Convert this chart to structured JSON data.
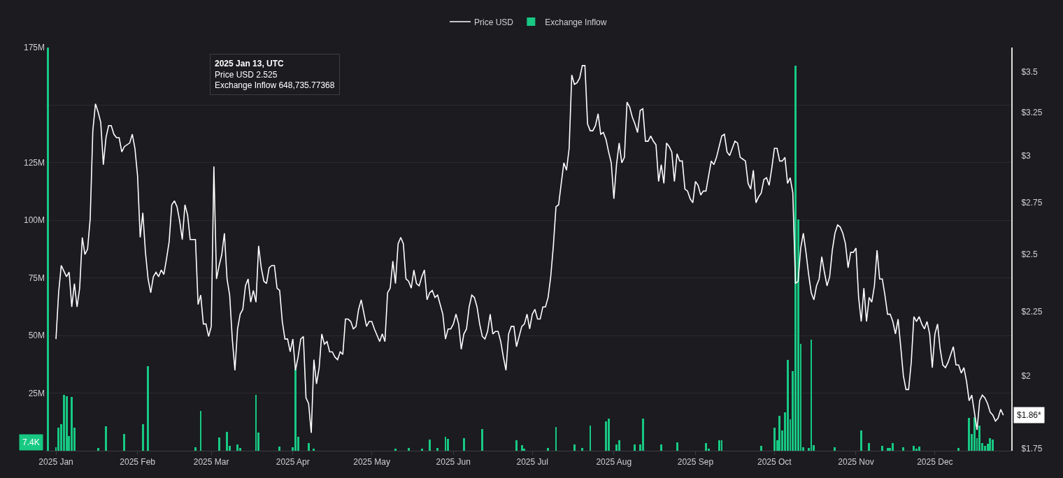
{
  "chart_data": {
    "type": "line",
    "series": [
      {
        "name": "Price USD",
        "color": "#ffffff",
        "axis": "y2",
        "x": [
          "2025-01-01",
          "2025-01-02",
          "2025-01-03",
          "2025-01-05",
          "2025-01-06",
          "2025-01-07",
          "2025-01-08",
          "2025-01-09",
          "2025-01-10",
          "2025-01-11",
          "2025-01-12",
          "2025-01-13",
          "2025-01-14",
          "2025-01-15",
          "2025-01-16",
          "2025-01-17",
          "2025-01-18",
          "2025-01-19",
          "2025-01-20",
          "2025-01-21",
          "2025-01-22",
          "2025-01-23",
          "2025-01-24",
          "2025-01-25",
          "2025-01-26",
          "2025-01-27",
          "2025-01-29",
          "2025-01-30",
          "2025-01-31",
          "2025-02-01",
          "2025-02-02",
          "2025-02-03",
          "2025-02-04",
          "2025-02-05",
          "2025-02-06",
          "2025-02-07",
          "2025-02-08",
          "2025-02-09",
          "2025-02-10",
          "2025-02-11",
          "2025-02-12",
          "2025-02-13",
          "2025-02-14",
          "2025-02-15",
          "2025-02-16",
          "2025-02-17",
          "2025-02-18",
          "2025-02-19",
          "2025-02-20",
          "2025-02-21",
          "2025-02-23",
          "2025-02-24",
          "2025-02-25",
          "2025-02-26",
          "2025-02-27",
          "2025-02-28",
          "2025-03-01",
          "2025-03-02",
          "2025-03-03",
          "2025-03-04",
          "2025-03-05",
          "2025-03-06",
          "2025-03-07",
          "2025-03-08",
          "2025-03-09",
          "2025-03-10",
          "2025-03-11",
          "2025-03-12",
          "2025-03-13",
          "2025-03-14",
          "2025-03-15",
          "2025-03-16",
          "2025-03-17",
          "2025-03-18",
          "2025-03-19",
          "2025-03-20",
          "2025-03-21",
          "2025-03-22",
          "2025-03-23",
          "2025-03-24",
          "2025-03-25",
          "2025-03-26",
          "2025-03-27",
          "2025-03-28",
          "2025-03-29",
          "2025-03-30",
          "2025-03-31",
          "2025-04-01",
          "2025-04-02",
          "2025-04-03",
          "2025-04-04",
          "2025-04-05",
          "2025-04-06",
          "2025-04-07",
          "2025-04-08",
          "2025-04-09",
          "2025-04-10",
          "2025-04-11",
          "2025-04-12",
          "2025-04-13",
          "2025-04-14",
          "2025-04-15",
          "2025-04-16",
          "2025-04-17",
          "2025-04-18",
          "2025-04-19",
          "2025-04-20",
          "2025-04-21",
          "2025-04-22",
          "2025-04-23",
          "2025-04-24",
          "2025-04-25",
          "2025-04-26",
          "2025-04-27",
          "2025-04-29",
          "2025-04-30",
          "2025-05-01",
          "2025-05-02",
          "2025-05-04",
          "2025-05-05",
          "2025-05-06",
          "2025-05-07",
          "2025-05-08",
          "2025-05-09",
          "2025-05-10",
          "2025-05-11",
          "2025-05-12",
          "2025-05-13",
          "2025-05-14",
          "2025-05-15",
          "2025-05-16",
          "2025-05-17",
          "2025-05-18",
          "2025-05-19",
          "2025-05-20",
          "2025-05-21",
          "2025-05-22",
          "2025-05-23",
          "2025-05-24",
          "2025-05-25",
          "2025-05-26",
          "2025-05-27",
          "2025-05-28",
          "2025-05-29",
          "2025-05-30",
          "2025-05-31",
          "2025-06-01",
          "2025-06-02",
          "2025-06-03",
          "2025-06-04",
          "2025-06-05",
          "2025-06-06",
          "2025-06-07",
          "2025-06-08",
          "2025-06-09",
          "2025-06-10",
          "2025-06-11",
          "2025-06-12",
          "2025-06-13",
          "2025-06-14",
          "2025-06-15",
          "2025-06-16",
          "2025-06-17",
          "2025-06-18",
          "2025-06-19",
          "2025-06-20",
          "2025-06-21",
          "2025-06-22",
          "2025-06-23",
          "2025-06-24",
          "2025-06-25",
          "2025-06-26",
          "2025-06-27",
          "2025-06-28",
          "2025-06-29",
          "2025-06-30",
          "2025-07-01",
          "2025-07-02",
          "2025-07-03",
          "2025-07-04",
          "2025-07-05",
          "2025-07-06",
          "2025-07-07",
          "2025-07-08",
          "2025-07-09",
          "2025-07-10",
          "2025-07-11",
          "2025-07-12",
          "2025-07-13",
          "2025-07-14",
          "2025-07-15",
          "2025-07-16",
          "2025-07-17",
          "2025-07-18",
          "2025-07-19",
          "2025-07-20",
          "2025-07-21",
          "2025-07-22",
          "2025-07-23",
          "2025-07-24",
          "2025-07-25",
          "2025-07-26",
          "2025-07-27",
          "2025-07-28",
          "2025-07-29",
          "2025-07-30",
          "2025-07-31",
          "2025-08-01",
          "2025-08-02",
          "2025-08-03",
          "2025-08-04",
          "2025-08-05",
          "2025-08-06",
          "2025-08-07",
          "2025-08-08",
          "2025-08-09",
          "2025-08-10",
          "2025-08-11",
          "2025-08-12",
          "2025-08-13",
          "2025-08-14",
          "2025-08-15",
          "2025-08-16",
          "2025-08-17",
          "2025-08-18",
          "2025-08-19",
          "2025-08-20",
          "2025-08-21",
          "2025-08-22",
          "2025-08-23",
          "2025-08-24",
          "2025-08-25",
          "2025-08-26",
          "2025-08-27",
          "2025-08-28",
          "2025-08-29",
          "2025-08-30",
          "2025-08-31",
          "2025-09-01",
          "2025-09-02",
          "2025-09-03",
          "2025-09-04",
          "2025-09-05",
          "2025-09-06",
          "2025-09-07",
          "2025-09-08",
          "2025-09-09",
          "2025-09-10",
          "2025-09-11",
          "2025-09-12",
          "2025-09-13",
          "2025-09-14",
          "2025-09-15",
          "2025-09-16",
          "2025-09-17",
          "2025-09-18",
          "2025-09-19",
          "2025-09-20",
          "2025-09-21",
          "2025-09-22",
          "2025-09-23",
          "2025-09-24",
          "2025-09-25",
          "2025-09-26",
          "2025-09-27",
          "2025-09-28",
          "2025-09-29",
          "2025-09-30",
          "2025-10-01",
          "2025-10-02",
          "2025-10-03",
          "2025-10-04",
          "2025-10-05",
          "2025-10-06",
          "2025-10-07",
          "2025-10-08",
          "2025-10-09",
          "2025-10-10",
          "2025-10-11",
          "2025-10-12",
          "2025-10-13",
          "2025-10-14",
          "2025-10-15",
          "2025-10-16",
          "2025-10-17",
          "2025-10-18",
          "2025-10-19",
          "2025-10-20",
          "2025-10-21",
          "2025-10-22",
          "2025-10-23",
          "2025-10-24",
          "2025-10-25",
          "2025-10-26",
          "2025-10-27",
          "2025-10-28",
          "2025-10-29",
          "2025-10-30",
          "2025-10-31",
          "2025-11-01",
          "2025-11-02",
          "2025-11-03",
          "2025-11-04",
          "2025-11-05",
          "2025-11-06",
          "2025-11-07",
          "2025-11-08",
          "2025-11-09",
          "2025-11-10",
          "2025-11-11",
          "2025-11-12",
          "2025-11-13",
          "2025-11-14",
          "2025-11-15",
          "2025-11-16",
          "2025-11-17",
          "2025-11-18",
          "2025-11-19",
          "2025-11-20",
          "2025-11-21",
          "2025-11-22",
          "2025-11-23",
          "2025-11-24",
          "2025-11-25",
          "2025-11-26",
          "2025-11-27",
          "2025-11-28",
          "2025-11-29",
          "2025-11-30",
          "2025-12-01",
          "2025-12-02",
          "2025-12-03",
          "2025-12-04",
          "2025-12-05",
          "2025-12-06",
          "2025-12-07",
          "2025-12-08",
          "2025-12-09",
          "2025-12-10",
          "2025-12-11",
          "2025-12-12",
          "2025-12-13",
          "2025-12-14",
          "2025-12-15",
          "2025-12-16",
          "2025-12-17",
          "2025-12-18",
          "2025-12-19",
          "2025-12-20",
          "2025-12-21",
          "2025-12-22",
          "2025-12-23",
          "2025-12-24",
          "2025-12-25",
          "2025-12-26",
          "2025-12-27"
        ],
        "values": [
          2.14,
          2.33,
          2.45,
          2.4,
          2.42,
          2.27,
          2.37,
          2.27,
          2.35,
          2.58,
          2.5,
          2.525,
          2.67,
          3.14,
          3.3,
          3.25,
          3.19,
          2.95,
          3.1,
          3.17,
          3.17,
          3.12,
          3.1,
          3.1,
          3.02,
          3.05,
          3.07,
          3.12,
          3.04,
          2.89,
          2.58,
          2.7,
          2.51,
          2.39,
          2.33,
          2.4,
          2.42,
          2.4,
          2.43,
          2.41,
          2.48,
          2.56,
          2.74,
          2.76,
          2.73,
          2.66,
          2.57,
          2.74,
          2.69,
          2.57,
          2.57,
          2.28,
          2.32,
          2.2,
          2.2,
          2.15,
          2.19,
          2.94,
          2.39,
          2.45,
          2.5,
          2.6,
          2.39,
          2.32,
          2.14,
          2.02,
          2.18,
          2.24,
          2.26,
          2.36,
          2.39,
          2.29,
          2.34,
          2.29,
          2.54,
          2.44,
          2.38,
          2.37,
          2.44,
          2.45,
          2.45,
          2.35,
          2.34,
          2.21,
          2.14,
          2.14,
          2.09,
          2.14,
          2.02,
          2.07,
          2.14,
          2.15,
          1.92,
          1.9,
          1.8,
          2.06,
          1.97,
          2.03,
          2.16,
          2.12,
          2.13,
          2.09,
          2.09,
          2.07,
          2.06,
          2.09,
          2.08,
          2.22,
          2.22,
          2.21,
          2.18,
          2.19,
          2.26,
          2.3,
          2.19,
          2.21,
          2.21,
          2.18,
          2.13,
          2.16,
          2.13,
          2.33,
          2.35,
          2.47,
          2.37,
          2.55,
          2.58,
          2.55,
          2.39,
          2.38,
          2.35,
          2.43,
          2.37,
          2.36,
          2.4,
          2.43,
          2.3,
          2.33,
          2.34,
          2.31,
          2.32,
          2.28,
          2.24,
          2.14,
          2.18,
          2.18,
          2.2,
          2.24,
          2.2,
          2.1,
          2.16,
          2.18,
          2.27,
          2.32,
          2.31,
          2.27,
          2.2,
          2.15,
          2.14,
          2.17,
          2.24,
          2.16,
          2.17,
          2.17,
          2.13,
          2.07,
          2.02,
          2.16,
          2.19,
          2.19,
          2.11,
          2.15,
          2.19,
          2.2,
          2.24,
          2.18,
          2.24,
          2.26,
          2.22,
          2.22,
          2.27,
          2.27,
          2.31,
          2.4,
          2.54,
          2.73,
          2.74,
          2.85,
          2.96,
          2.92,
          3.04,
          3.48,
          3.42,
          3.43,
          3.46,
          3.54,
          3.54,
          3.18,
          3.14,
          3.14,
          3.17,
          3.24,
          3.12,
          3.13,
          3.09,
          3.02,
          2.96,
          2.77,
          2.95,
          3.07,
          2.96,
          2.99,
          3.31,
          3.28,
          3.22,
          3.18,
          3.13,
          3.26,
          3.27,
          3.08,
          3.08,
          3.11,
          3.08,
          3.06,
          2.86,
          2.95,
          2.85,
          3.07,
          3.05,
          3.02,
          2.86,
          3.01,
          2.97,
          2.97,
          2.82,
          2.81,
          2.77,
          2.75,
          2.86,
          2.84,
          2.79,
          2.81,
          2.81,
          2.89,
          2.97,
          2.95,
          2.99,
          3.05,
          3.11,
          3.12,
          3.02,
          3.0,
          3.04,
          3.08,
          3.07,
          2.99,
          2.98,
          2.97,
          2.85,
          2.82,
          2.92,
          2.75,
          2.78,
          2.8,
          2.87,
          2.88,
          2.84,
          2.93,
          3.04,
          3.04,
          2.97,
          2.97,
          2.99,
          2.85,
          2.88,
          2.8,
          2.37,
          2.38,
          2.53,
          2.6,
          2.51,
          2.41,
          2.33,
          2.3,
          2.36,
          2.39,
          2.49,
          2.42,
          2.36,
          2.4,
          2.52,
          2.6,
          2.64,
          2.63,
          2.6,
          2.55,
          2.44,
          2.51,
          2.51,
          2.53,
          2.31,
          2.21,
          2.35,
          2.21,
          2.31,
          2.29,
          2.36,
          2.52,
          2.39,
          2.39,
          2.32,
          2.24,
          2.24,
          2.21,
          2.16,
          2.22,
          2.11,
          2.0,
          1.95,
          1.95,
          2.05,
          2.23,
          2.21,
          2.23,
          2.2,
          2.18,
          2.21,
          2.16,
          2.03,
          2.16,
          2.2,
          2.1,
          2.04,
          2.03,
          2.05,
          2.08,
          2.11,
          2.04,
          2.04,
          2.01,
          2.03,
          1.98,
          1.91,
          1.93,
          1.87,
          1.81,
          1.91,
          1.93,
          1.92,
          1.9,
          1.87,
          1.86,
          1.84,
          1.85,
          1.88,
          1.86
        ]
      },
      {
        "name": "Exchange Inflow",
        "type": "bar",
        "color": "#17c983",
        "x": [
          "2024-12-29",
          "2025-01-01",
          "2025-01-02",
          "2025-01-03",
          "2025-01-04",
          "2025-01-05",
          "2025-01-06",
          "2025-01-07",
          "2025-01-08",
          "2025-01-17",
          "2025-01-20",
          "2025-01-27",
          "2025-02-03",
          "2025-02-05",
          "2025-02-23",
          "2025-02-25",
          "2025-03-04",
          "2025-03-07",
          "2025-03-08",
          "2025-03-11",
          "2025-03-12",
          "2025-03-18",
          "2025-03-19",
          "2025-03-27",
          "2025-04-01",
          "2025-04-02",
          "2025-04-03",
          "2025-04-07",
          "2025-04-09",
          "2025-05-10",
          "2025-05-15",
          "2025-05-20",
          "2025-05-23",
          "2025-05-26",
          "2025-05-29",
          "2025-05-30",
          "2025-06-05",
          "2025-06-12",
          "2025-06-25",
          "2025-06-27",
          "2025-06-28",
          "2025-07-07",
          "2025-07-10",
          "2025-07-17",
          "2025-07-20",
          "2025-07-23",
          "2025-07-29",
          "2025-07-30",
          "2025-08-02",
          "2025-08-03",
          "2025-08-09",
          "2025-08-11",
          "2025-08-12",
          "2025-08-19",
          "2025-08-25",
          "2025-09-05",
          "2025-09-06",
          "2025-09-10",
          "2025-09-11",
          "2025-09-26",
          "2025-10-01",
          "2025-10-02",
          "2025-10-03",
          "2025-10-04",
          "2025-10-05",
          "2025-10-06",
          "2025-10-07",
          "2025-10-08",
          "2025-10-09",
          "2025-10-10",
          "2025-10-11",
          "2025-10-12",
          "2025-10-14",
          "2025-10-15",
          "2025-10-16",
          "2025-10-24",
          "2025-11-03",
          "2025-11-06",
          "2025-11-11",
          "2025-11-13",
          "2025-11-14",
          "2025-11-15",
          "2025-11-19",
          "2025-11-23",
          "2025-11-24",
          "2025-11-25",
          "2025-12-10",
          "2025-12-14",
          "2025-12-15",
          "2025-12-16",
          "2025-12-17",
          "2025-12-18",
          "2025-12-19",
          "2025-12-20",
          "2025-12-21",
          "2025-12-22",
          "2025-12-23"
        ],
        "values": [
          175000000,
          1400000,
          9900000,
          11600000,
          24400000,
          23800000,
          6400000,
          23500000,
          9900000,
          1200000,
          10700000,
          7200000,
          11400000,
          36800000,
          1400000,
          17400000,
          5800000,
          8100000,
          2100000,
          2600000,
          1200000,
          24400000,
          7900000,
          1700000,
          1400000,
          35400000,
          6000000,
          3300000,
          900000,
          900000,
          1200000,
          900000,
          5000000,
          1200000,
          6200000,
          5200000,
          5500000,
          9500000,
          4400000,
          2300000,
          900000,
          1200000,
          10400000,
          2600000,
          1200000,
          11000000,
          12800000,
          13900000,
          2600000,
          4400000,
          2600000,
          2600000,
          13900000,
          2800000,
          3500000,
          3300000,
          900000,
          4400000,
          4400000,
          2100000,
          9900000,
          4400000,
          15300000,
          8700000,
          16800000,
          39500000,
          13700000,
          34600000,
          167000000,
          100500000,
          46400000,
          1400000,
          1200000,
          48200000,
          2300000,
          1600000,
          8700000,
          3300000,
          2100000,
          1200000,
          1200000,
          3300000,
          1400000,
          2100000,
          900000,
          1700000,
          1200000,
          14200000,
          7200000,
          14500000,
          5600000,
          11000000,
          3300000,
          2100000,
          2900000,
          5600000,
          4900000
        ]
      }
    ],
    "xlim": [
      "2024-12-28",
      "2025-12-30"
    ],
    "xticks": [
      {
        "value": "2025-01-01",
        "label": "2025 Jan"
      },
      {
        "value": "2025-02-01",
        "label": "2025 Feb"
      },
      {
        "value": "2025-03-01",
        "label": "2025 Mar"
      },
      {
        "value": "2025-04-01",
        "label": "2025 Apr"
      },
      {
        "value": "2025-05-01",
        "label": "2025 May"
      },
      {
        "value": "2025-06-01",
        "label": "2025 Jun"
      },
      {
        "value": "2025-07-01",
        "label": "2025 Jul"
      },
      {
        "value": "2025-08-01",
        "label": "2025 Aug"
      },
      {
        "value": "2025-09-01",
        "label": "2025 Sep"
      },
      {
        "value": "2025-10-01",
        "label": "2025 Oct"
      },
      {
        "value": "2025-11-01",
        "label": "2025 Nov"
      },
      {
        "value": "2025-12-01",
        "label": "2025 Dec"
      }
    ],
    "ylim": [
      0,
      175000000
    ],
    "yticks": [
      {
        "value": 25000000,
        "label": "25M"
      },
      {
        "value": 50000000,
        "label": "50M"
      },
      {
        "value": 75000000,
        "label": "75M"
      },
      {
        "value": 100000000,
        "label": "100M"
      },
      {
        "value": 125000000,
        "label": "125M"
      },
      {
        "value": 150000000,
        "label": null
      },
      {
        "value": 175000000,
        "label": "175M"
      }
    ],
    "y2lim": [
      1.742,
      3.66
    ],
    "y2ticks": [
      {
        "value": 1.75,
        "label": "$1.75"
      },
      {
        "value": 2,
        "label": "$2"
      },
      {
        "value": 2.25,
        "label": "$2.25"
      },
      {
        "value": 2.5,
        "label": "$2.5"
      },
      {
        "value": 2.75,
        "label": "$2.75"
      },
      {
        "value": 3,
        "label": "$3"
      },
      {
        "value": 3.25,
        "label": "$3.25"
      },
      {
        "value": 3.5,
        "label": "$3.5"
      }
    ],
    "log": "y2",
    "grid": "y",
    "legend": "top",
    "annotations": [
      "2025 Jan 13, UTC\nPrice USD 2.525\nExchange Inflow 648,735.77368",
      "7.4K",
      "$1.86*"
    ]
  }
}
